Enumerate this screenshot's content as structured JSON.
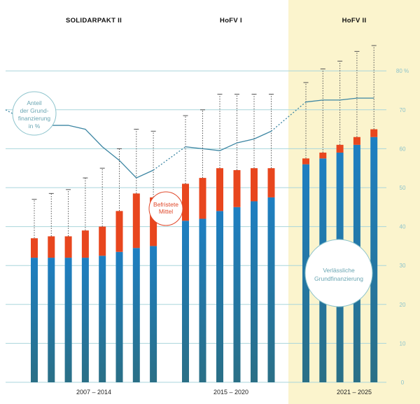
{
  "chart_data": {
    "type": "bar",
    "periods": [
      {
        "header": "SOLIDARPAKT II",
        "label": "2007 – 2014",
        "bars": 8
      },
      {
        "header": "HoFV I",
        "label": "2015 – 2020",
        "bars": 6
      },
      {
        "header": "HoFV II",
        "label": "2021 – 2025",
        "bars": 5
      }
    ],
    "series": [
      {
        "name": "Verlässliche Grundfinanzierung",
        "color": "#1f78b4",
        "values": [
          32,
          32,
          32,
          32,
          32.5,
          33.5,
          34.5,
          35,
          41.5,
          42,
          44,
          45,
          46.5,
          47.5,
          56,
          57.5,
          59,
          61,
          63
        ]
      },
      {
        "name": "Befristete Mittel",
        "color": "#e8461e",
        "values": [
          5,
          5.5,
          5.5,
          7,
          7.5,
          10.5,
          14,
          12.5,
          9.5,
          10.5,
          11,
          9.5,
          8.5,
          7.5,
          1.5,
          1.5,
          2,
          2,
          2
        ]
      }
    ],
    "dotted_max": [
      47,
      48.5,
      49.5,
      52.5,
      55,
      60,
      65,
      64.5,
      68.5,
      70,
      74,
      74,
      74,
      74,
      77,
      80.5,
      82.5,
      85,
      86.5
    ],
    "anteil_line": [
      66,
      66,
      66,
      65,
      60.5,
      57,
      52.5,
      54.5,
      60.5,
      60,
      59.5,
      61.5,
      62.5,
      64.5,
      72,
      72.5,
      72.5,
      73,
      73
    ],
    "anteil_line_start": 70,
    "y_axis": {
      "ticks": [
        0,
        10,
        20,
        30,
        40,
        50,
        60,
        70,
        80
      ],
      "top_label": "80 %",
      "ylim": [
        0,
        80
      ]
    },
    "annotations": {
      "anteil_lines": [
        "Anteil",
        "der Grund-",
        "finanzierung",
        "in %"
      ],
      "befristet_lines": [
        "Befristete",
        "Mittel"
      ],
      "grund_lines": [
        "Verlässliche",
        "Grundfinanzierung"
      ]
    },
    "colors": {
      "grid": "#a9d6dc",
      "line": "#3d86a3",
      "highlight": "#fbf4cd",
      "tick": "#8cc3cc",
      "dotted": "#555555"
    }
  }
}
